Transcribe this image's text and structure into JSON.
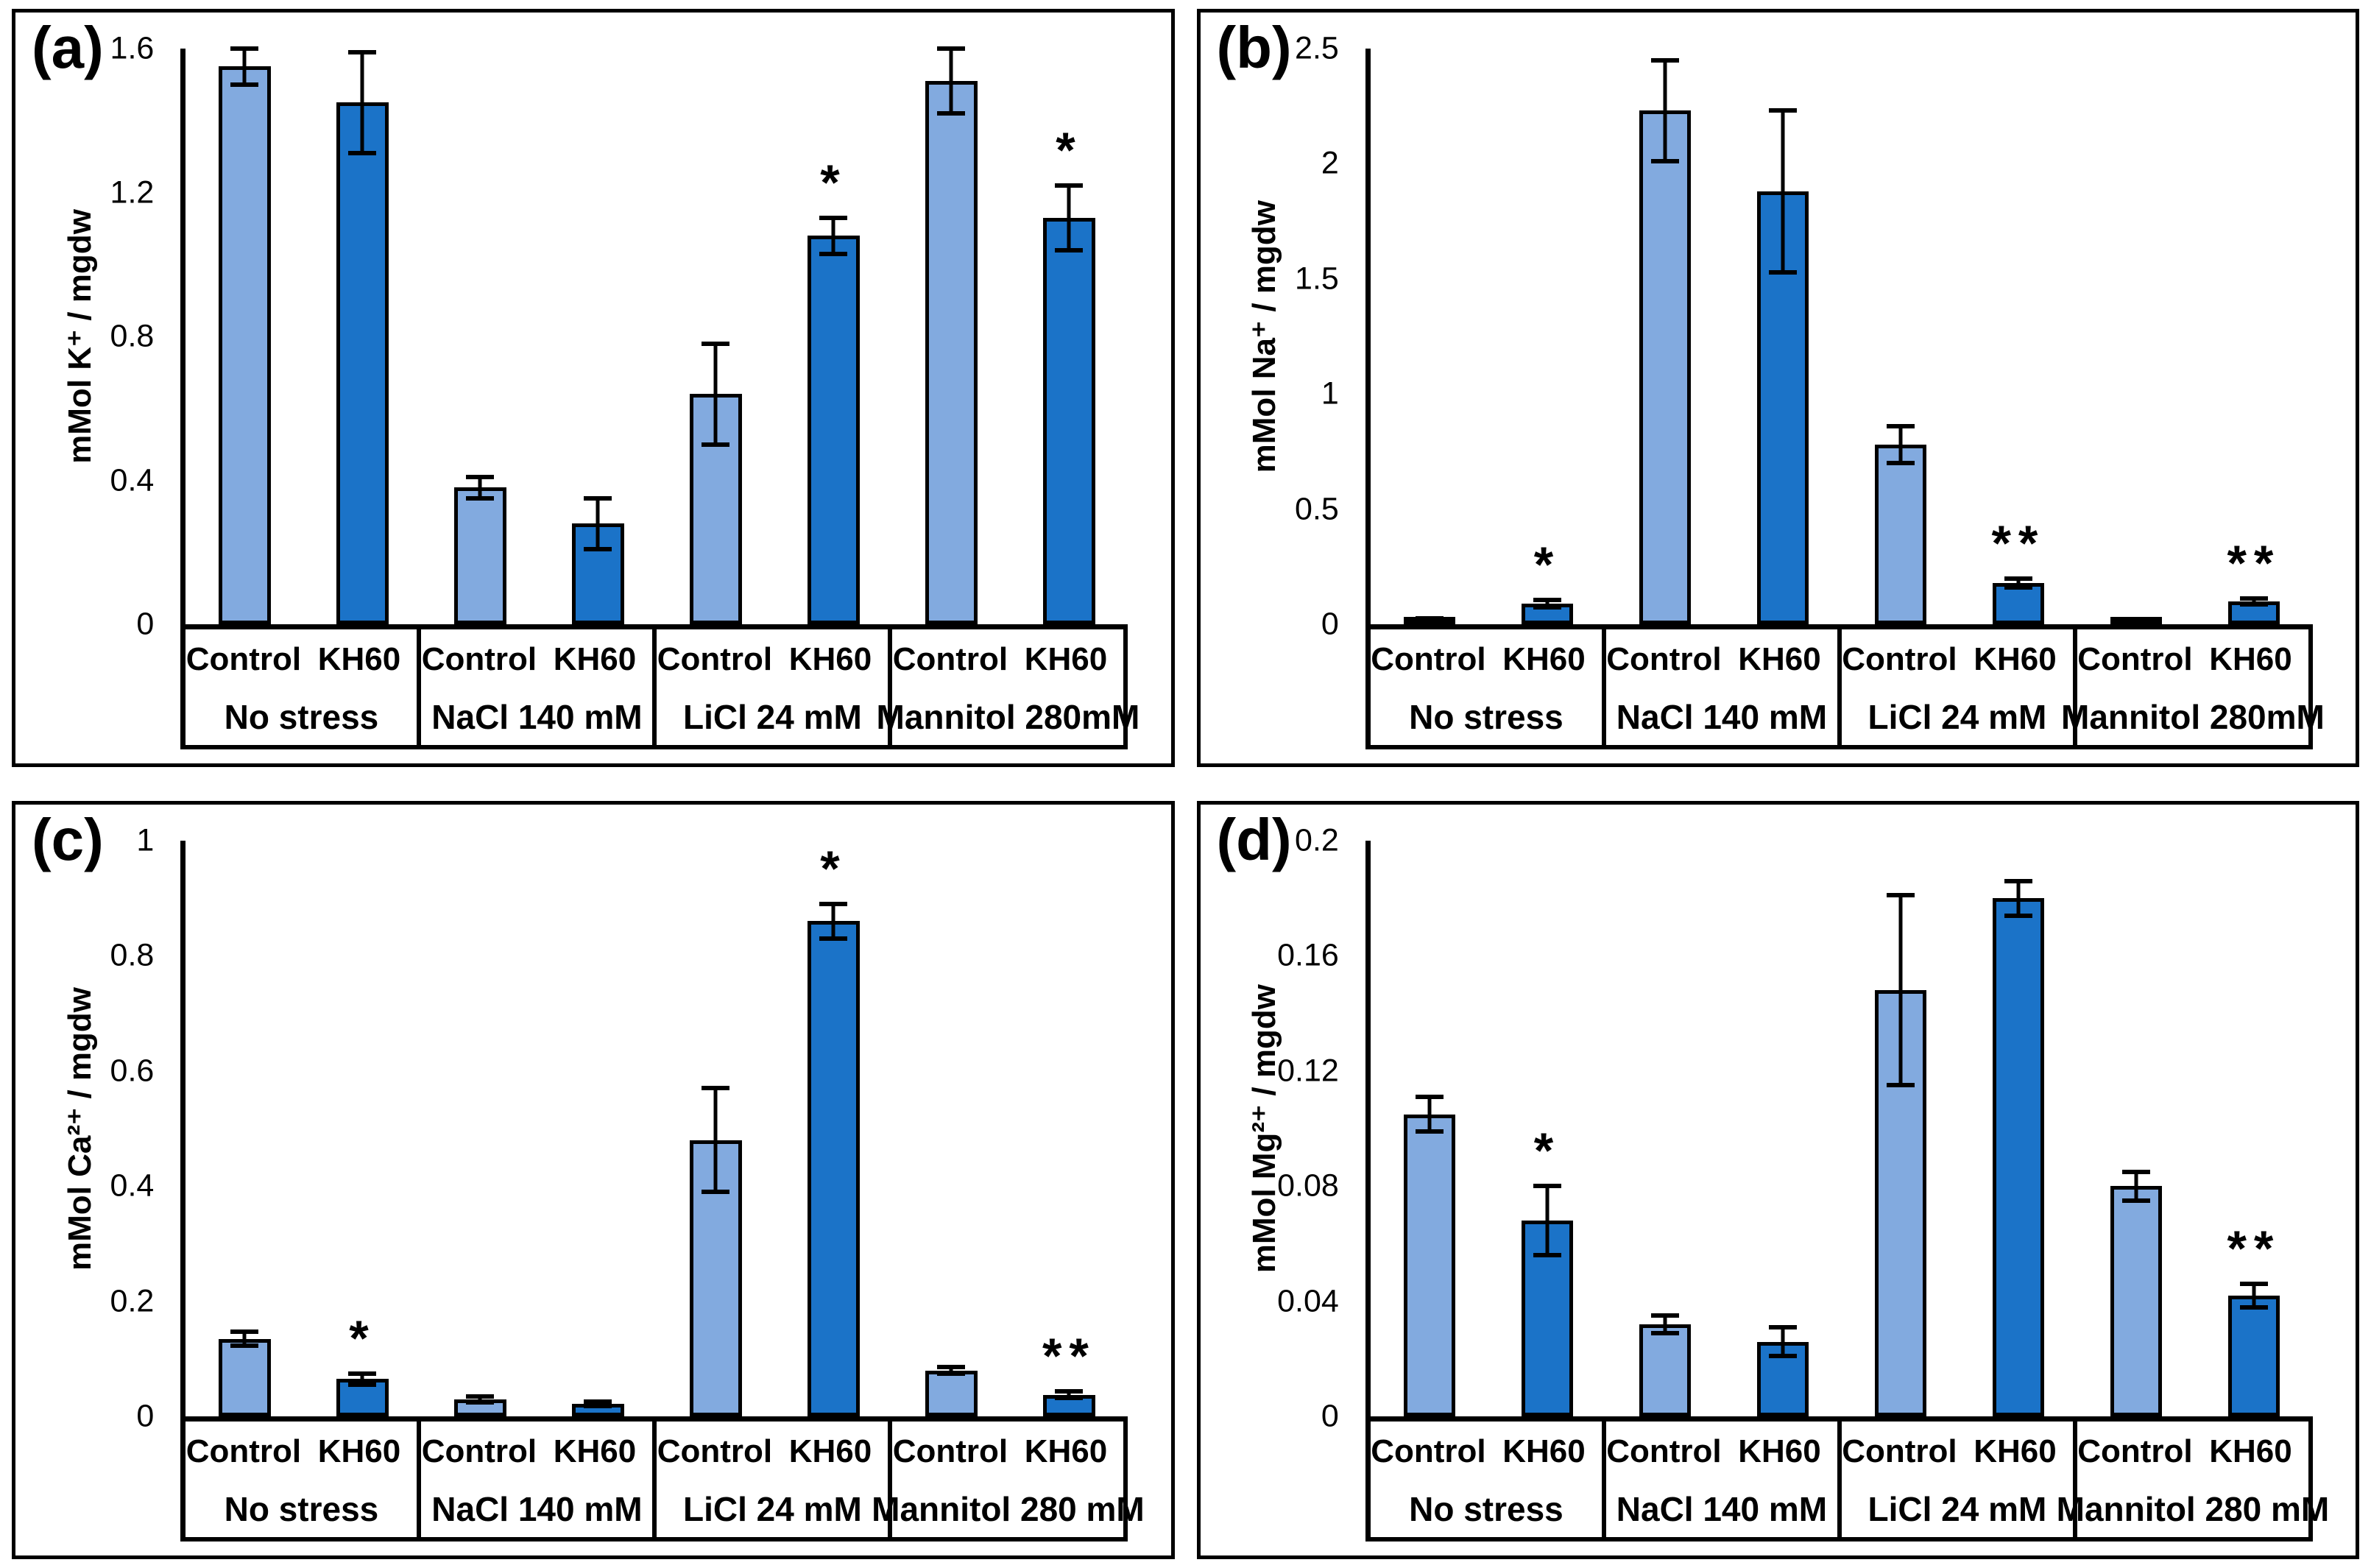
{
  "figure": {
    "series_labels": [
      "Control",
      "KH60"
    ],
    "colors": {
      "control_bar": "#82AADF",
      "kh60_bar": "#1B73C8",
      "outline": "#000000",
      "background": "#FFFFFF"
    }
  },
  "chart_data": [
    {
      "type": "bar",
      "panel_id": "a",
      "panel_label": "(a)",
      "ylabel": "mMol K⁺ / mgdw",
      "ylim": [
        0,
        1.6
      ],
      "yticks": [
        {
          "v": 0,
          "label": "0"
        },
        {
          "v": 0.4,
          "label": "0.4"
        },
        {
          "v": 0.8,
          "label": "0.8"
        },
        {
          "v": 1.2,
          "label": "1.2"
        },
        {
          "v": 1.6,
          "label": "1.6"
        }
      ],
      "groups": [
        {
          "name": "No stress",
          "bars": [
            {
              "series": "Control",
              "value": 1.55,
              "err": 0.05,
              "sig": ""
            },
            {
              "series": "KH60",
              "value": 1.45,
              "err": 0.14,
              "sig": ""
            }
          ]
        },
        {
          "name": "NaCl 140 mM",
          "bars": [
            {
              "series": "Control",
              "value": 0.38,
              "err": 0.03,
              "sig": ""
            },
            {
              "series": "KH60",
              "value": 0.28,
              "err": 0.07,
              "sig": ""
            }
          ]
        },
        {
          "name": "LiCl 24 mM",
          "bars": [
            {
              "series": "Control",
              "value": 0.64,
              "err": 0.14,
              "sig": ""
            },
            {
              "series": "KH60",
              "value": 1.08,
              "err": 0.05,
              "sig": "*"
            }
          ]
        },
        {
          "name": "Mannitol 280mM",
          "bars": [
            {
              "series": "Control",
              "value": 1.51,
              "err": 0.09,
              "sig": ""
            },
            {
              "series": "KH60",
              "value": 1.13,
              "err": 0.09,
              "sig": "*"
            }
          ]
        }
      ]
    },
    {
      "type": "bar",
      "panel_id": "b",
      "panel_label": "(b)",
      "ylabel": "mMol Na⁺ / mgdw",
      "ylim": [
        0,
        2.5
      ],
      "yticks": [
        {
          "v": 0,
          "label": "0"
        },
        {
          "v": 0.5,
          "label": "0.5"
        },
        {
          "v": 1,
          "label": "1"
        },
        {
          "v": 1.5,
          "label": "1.5"
        },
        {
          "v": 2,
          "label": "2"
        },
        {
          "v": 2.5,
          "label": "2.5"
        }
      ],
      "groups": [
        {
          "name": "No stress",
          "bars": [
            {
              "series": "Control",
              "value": 0.02,
              "err": 0.005,
              "sig": ""
            },
            {
              "series": "KH60",
              "value": 0.09,
              "err": 0.015,
              "sig": "*"
            }
          ]
        },
        {
          "name": "NaCl 140 mM",
          "bars": [
            {
              "series": "Control",
              "value": 2.23,
              "err": 0.22,
              "sig": ""
            },
            {
              "series": "KH60",
              "value": 1.88,
              "err": 0.35,
              "sig": ""
            }
          ]
        },
        {
          "name": "LiCl 24 mM",
          "bars": [
            {
              "series": "Control",
              "value": 0.78,
              "err": 0.08,
              "sig": ""
            },
            {
              "series": "KH60",
              "value": 0.18,
              "err": 0.02,
              "sig": "**"
            }
          ]
        },
        {
          "name": "Mannitol 280mM",
          "bars": [
            {
              "series": "Control",
              "value": 0.01,
              "err": 0.003,
              "sig": ""
            },
            {
              "series": "KH60",
              "value": 0.1,
              "err": 0.012,
              "sig": "**"
            }
          ]
        }
      ]
    },
    {
      "type": "bar",
      "panel_id": "c",
      "panel_label": "(c)",
      "ylabel": "mMol Ca²⁺ / mgdw",
      "ylim": [
        0,
        1
      ],
      "yticks": [
        {
          "v": 0,
          "label": "0"
        },
        {
          "v": 0.2,
          "label": "0.2"
        },
        {
          "v": 0.4,
          "label": "0.4"
        },
        {
          "v": 0.6,
          "label": "0.6"
        },
        {
          "v": 0.8,
          "label": "0.8"
        },
        {
          "v": 1,
          "label": "1"
        }
      ],
      "groups": [
        {
          "name": "No stress",
          "bars": [
            {
              "series": "Control",
              "value": 0.135,
              "err": 0.012,
              "sig": ""
            },
            {
              "series": "KH60",
              "value": 0.065,
              "err": 0.01,
              "sig": "*"
            }
          ]
        },
        {
          "name": "NaCl 140 mM",
          "bars": [
            {
              "series": "Control",
              "value": 0.03,
              "err": 0.005,
              "sig": ""
            },
            {
              "series": "KH60",
              "value": 0.022,
              "err": 0.004,
              "sig": ""
            }
          ]
        },
        {
          "name": "LiCl 24 mM",
          "bars": [
            {
              "series": "Control",
              "value": 0.48,
              "err": 0.09,
              "sig": ""
            },
            {
              "series": "KH60",
              "value": 0.86,
              "err": 0.03,
              "sig": "*"
            }
          ]
        },
        {
          "name": "Mannitol 280 mM",
          "bars": [
            {
              "series": "Control",
              "value": 0.08,
              "err": 0.006,
              "sig": ""
            },
            {
              "series": "KH60",
              "value": 0.038,
              "err": 0.006,
              "sig": "**"
            }
          ]
        }
      ]
    },
    {
      "type": "bar",
      "panel_id": "d",
      "panel_label": "(d)",
      "ylabel": "mMol Mg²⁺ / mgdw",
      "ylim": [
        0,
        0.2
      ],
      "yticks": [
        {
          "v": 0,
          "label": "0"
        },
        {
          "v": 0.04,
          "label": "0.04"
        },
        {
          "v": 0.08,
          "label": "0.08"
        },
        {
          "v": 0.12,
          "label": "0.12"
        },
        {
          "v": 0.16,
          "label": "0.16"
        },
        {
          "v": 0.2,
          "label": "0.2"
        }
      ],
      "groups": [
        {
          "name": "No stress",
          "bars": [
            {
              "series": "Control",
              "value": 0.105,
              "err": 0.006,
              "sig": ""
            },
            {
              "series": "KH60",
              "value": 0.068,
              "err": 0.012,
              "sig": "*"
            }
          ]
        },
        {
          "name": "NaCl 140 mM",
          "bars": [
            {
              "series": "Control",
              "value": 0.032,
              "err": 0.003,
              "sig": ""
            },
            {
              "series": "KH60",
              "value": 0.026,
              "err": 0.005,
              "sig": ""
            }
          ]
        },
        {
          "name": "LiCl 24 mM",
          "bars": [
            {
              "series": "Control",
              "value": 0.148,
              "err": 0.033,
              "sig": ""
            },
            {
              "series": "KH60",
              "value": 0.18,
              "err": 0.006,
              "sig": ""
            }
          ]
        },
        {
          "name": "Mannitol 280 mM",
          "bars": [
            {
              "series": "Control",
              "value": 0.08,
              "err": 0.005,
              "sig": ""
            },
            {
              "series": "KH60",
              "value": 0.042,
              "err": 0.004,
              "sig": "**"
            }
          ]
        }
      ]
    }
  ]
}
